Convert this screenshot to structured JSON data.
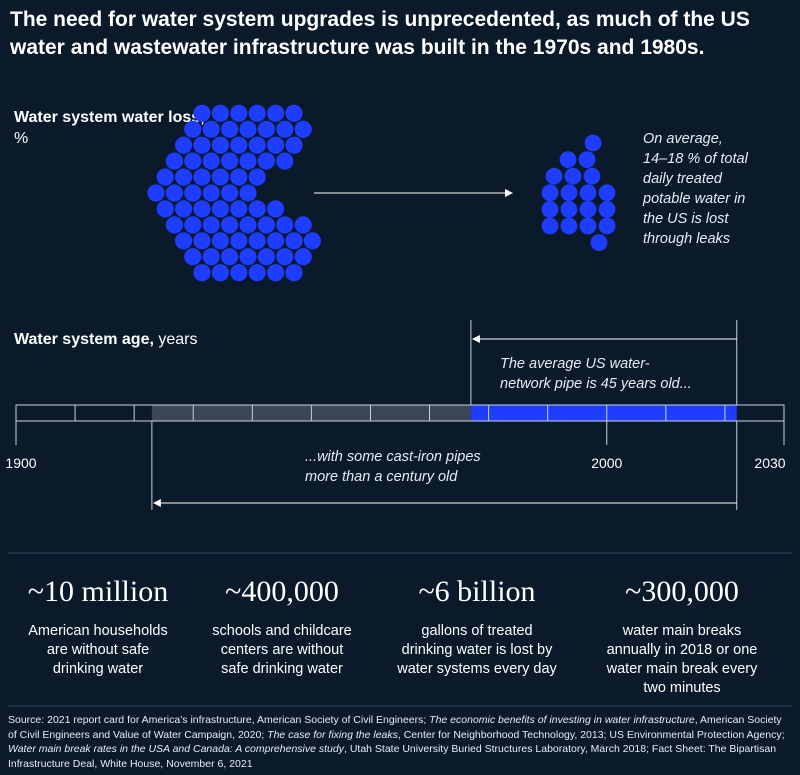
{
  "title": "The need for water system upgrades is unprecedented, as much of the US water and wastewater infrastructure was built in the 1970s and 1980s.",
  "water_loss": {
    "label_bold": "Water system water loss,",
    "label_unit": "%",
    "note": [
      "On average,",
      "14–18 % of total",
      "daily treated",
      "potable water in",
      "the US is lost",
      "through leaks"
    ],
    "dot_color": "#1f3dff"
  },
  "water_age": {
    "label_bold": "Water system age,",
    "label_unit": "years",
    "note_top": [
      "The average US water-",
      "network pipe is 45 years old..."
    ],
    "note_bottom": [
      "...with some cast-iron pipes",
      "more than a century old"
    ]
  },
  "timeline": {
    "start_year": 1900,
    "end_year": 2030,
    "tick_labels": [
      "1900",
      "2000",
      "2030"
    ],
    "old_pipe_start_year": 1923,
    "avg_age_start_year": 1977,
    "reference_year": 2022,
    "avg_age_years": 45,
    "avg_color": "#1f3dff",
    "old_color": "#3a4754"
  },
  "stats": [
    {
      "value": "~10 million",
      "desc": [
        "American households",
        "are without safe",
        "drinking water"
      ]
    },
    {
      "value": "~400,000",
      "desc": [
        "schools and childcare",
        "centers are without",
        "safe drinking water"
      ]
    },
    {
      "value": "~6 billion",
      "desc": [
        "gallons of treated",
        "drinking water is lost by",
        "water systems every day"
      ]
    },
    {
      "value": "~300,000",
      "desc": [
        "water main breaks",
        "annually in 2018 or one",
        "water main break every",
        "two minutes"
      ]
    }
  ],
  "source": {
    "p1": "Source: 2021 report card for America’s infrastructure, American Society of Civil Engineers; ",
    "i1": "The economic benefits of investing in water infrastructure",
    "p2": ", American Society of Civil Engineers and Value of Water Campaign, 2020; ",
    "i2": "The case for fixing the leaks",
    "p3": ", Center for Neighborhood Technology, 2013; US Environmental Protection Agency; ",
    "i3": "Water main break rates in the USA and Canada: A comprehensive study",
    "p4": ", Utah State University Buried Structures Laboratory, March 2018; Fact Sheet: The Bipartisan Infrastructure Deal, White House, November 6, 2021"
  }
}
